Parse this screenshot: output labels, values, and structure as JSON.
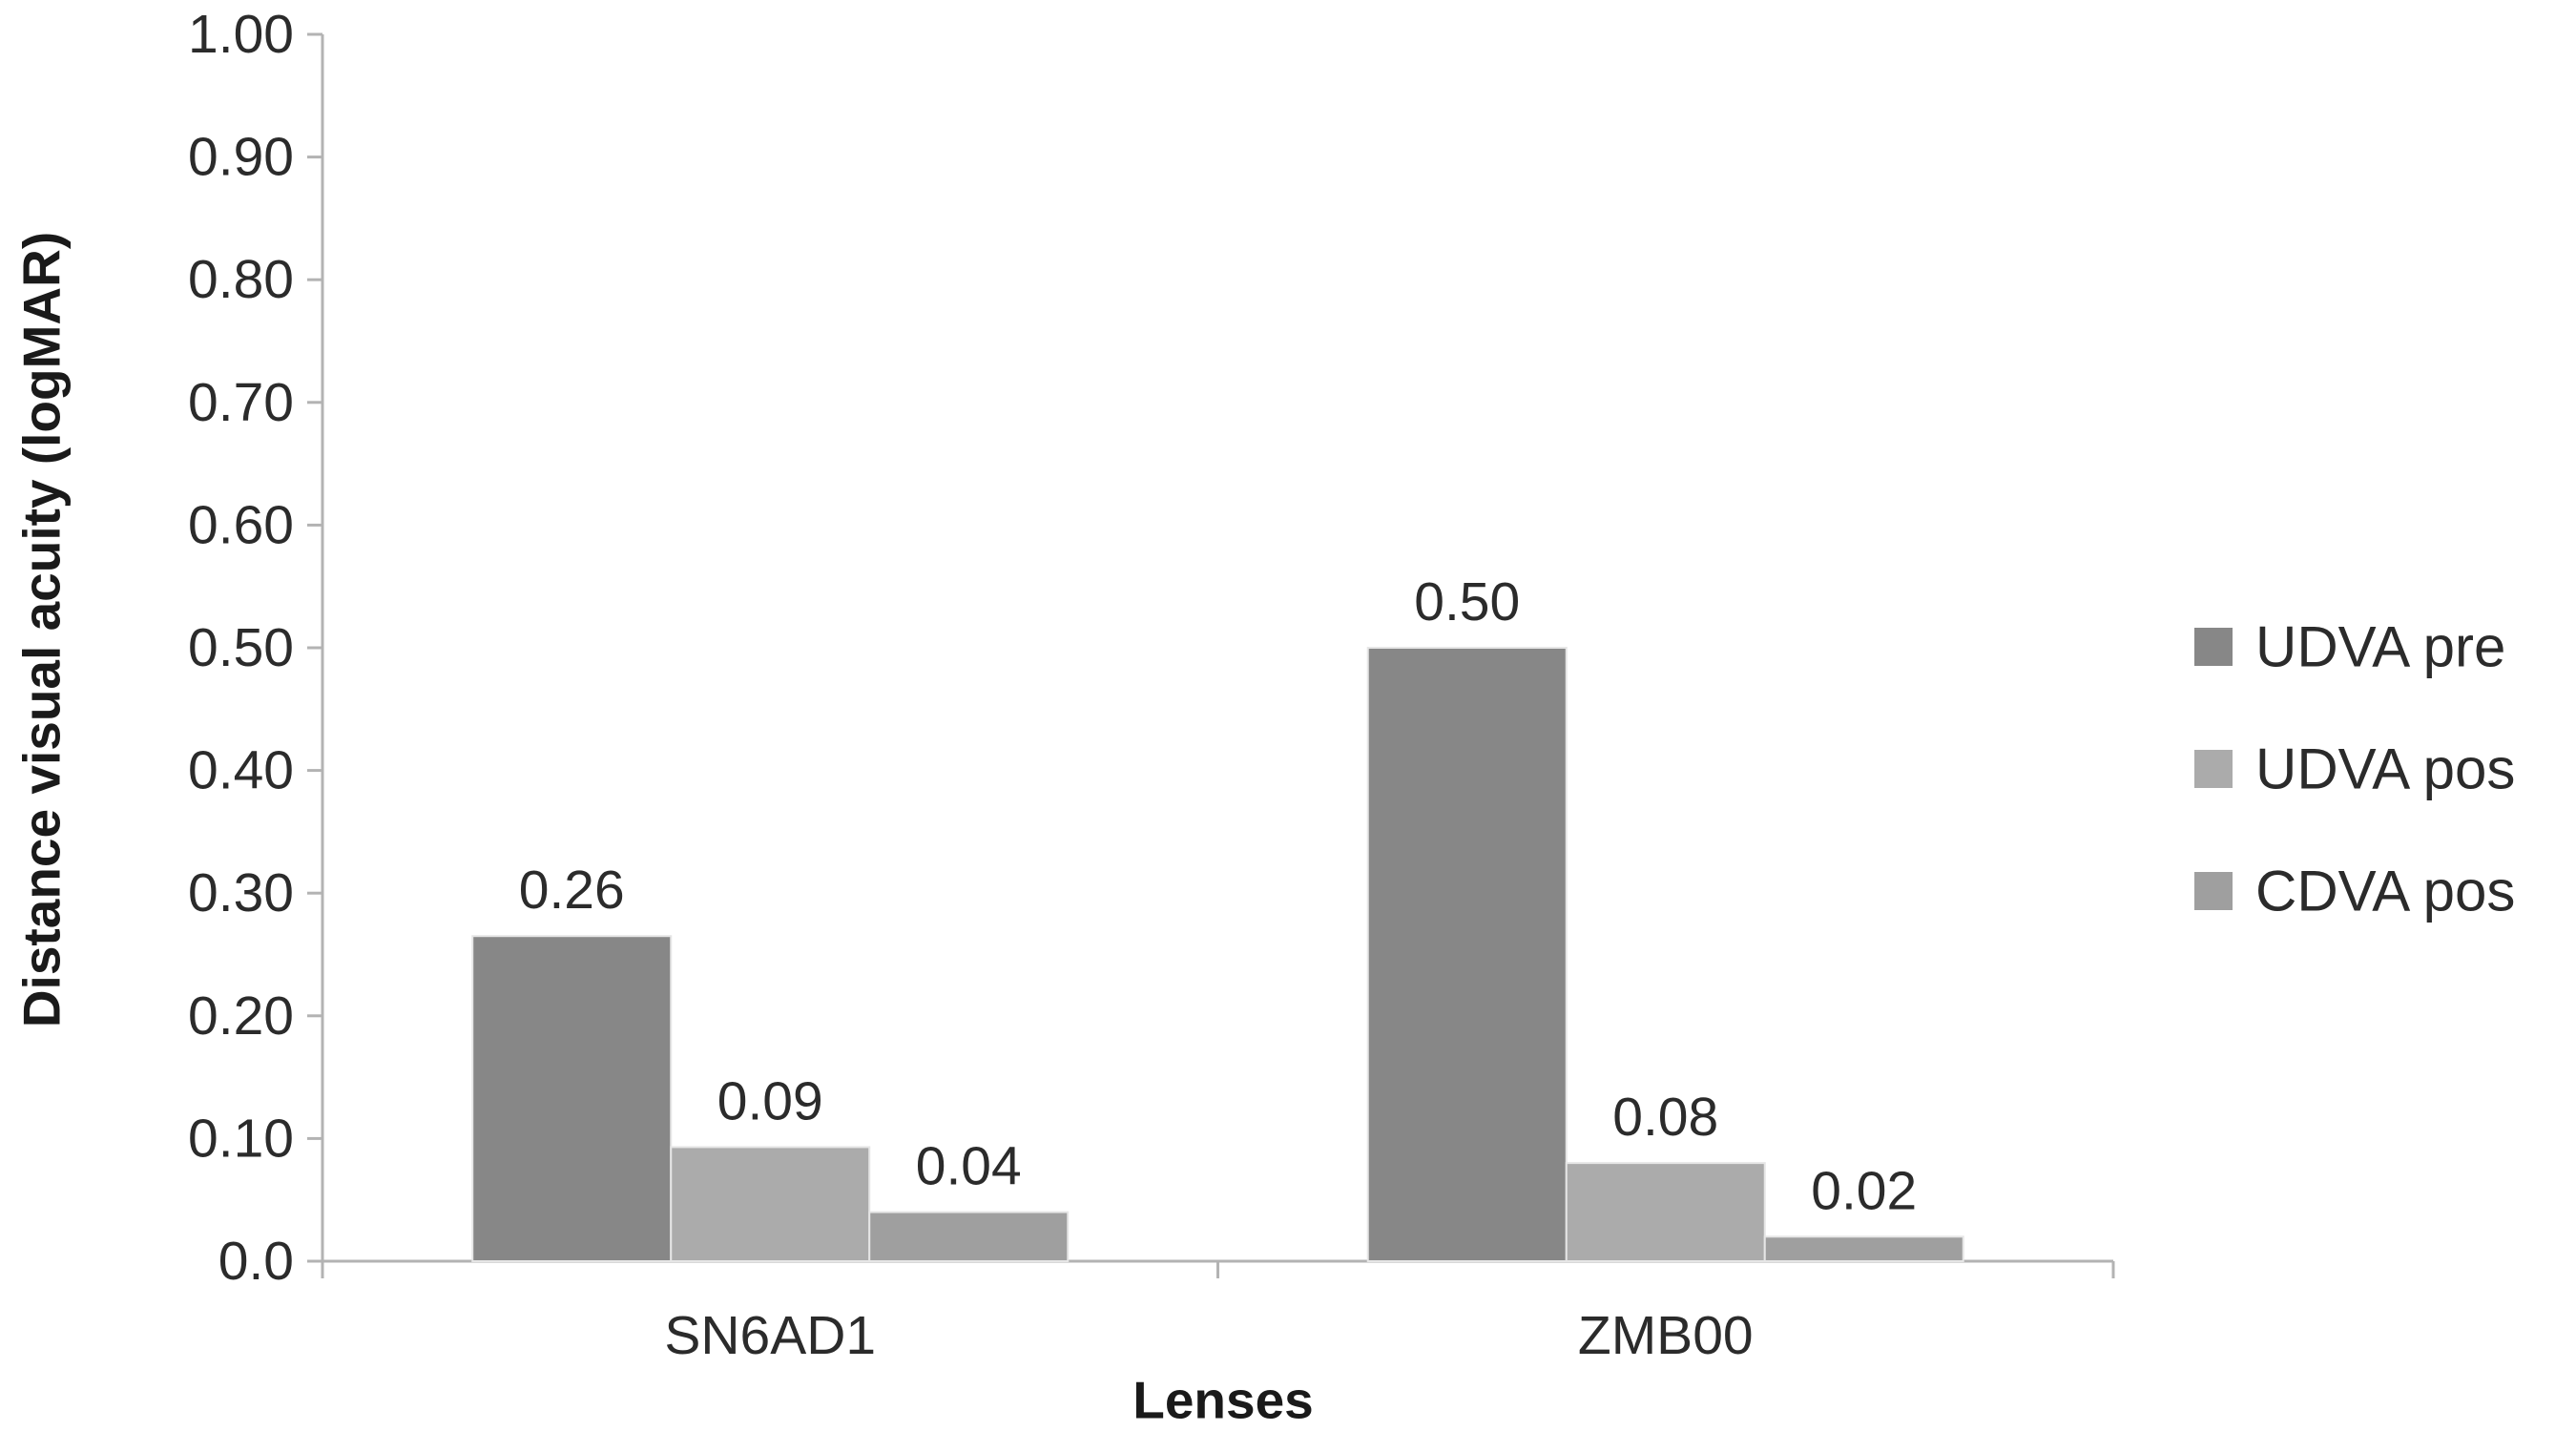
{
  "chart_data": {
    "type": "bar",
    "title": "",
    "xlabel": "Lenses",
    "ylabel": "Distance visual acuity (logMAR)",
    "ylim": [
      0,
      1.0
    ],
    "yticks": [
      "0.0",
      "0.10",
      "0.20",
      "0.30",
      "0.40",
      "0.50",
      "0.60",
      "0.70",
      "0.80",
      "0.90",
      "1.00"
    ],
    "categories": [
      "SN6AD1",
      "ZMB00"
    ],
    "series": [
      {
        "name": "UDVA pre",
        "values": [
          0.265,
          0.5
        ],
        "labels": [
          "0.26",
          "0.50"
        ],
        "color": "#878787"
      },
      {
        "name": "UDVA pos",
        "values": [
          0.093,
          0.08
        ],
        "labels": [
          "0.09",
          "0.08"
        ],
        "color": "#ababab"
      },
      {
        "name": "CDVA pos",
        "values": [
          0.04,
          0.02
        ],
        "labels": [
          "0.04",
          "0.02"
        ],
        "color": "#9f9f9f"
      }
    ],
    "grid": false,
    "legend_position": "right"
  }
}
